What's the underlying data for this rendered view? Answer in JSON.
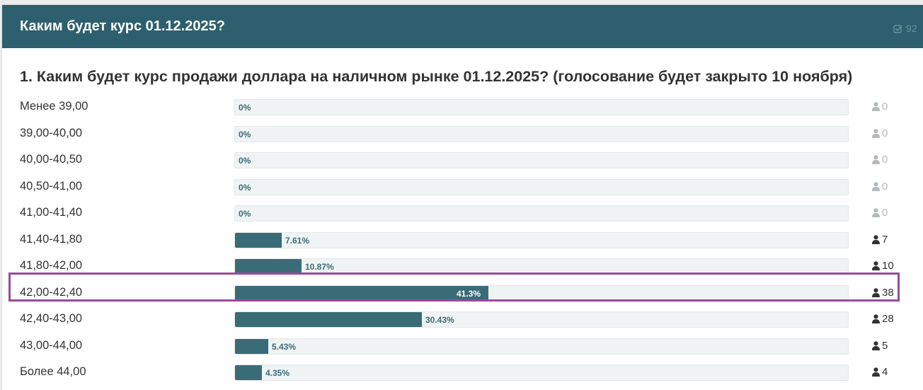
{
  "header": {
    "title": "Каким будет курс 01.12.2025?",
    "votes_badge": "92"
  },
  "question": "1. Каким будет курс продажи доллара на наличном рынке 01.12.2025? (голосование будет закрыто 10 ноября)",
  "options": [
    {
      "label": "Менее 39,00",
      "percent_text": "0%",
      "percent": 0,
      "votes": "0"
    },
    {
      "label": "39,00-40,00",
      "percent_text": "0%",
      "percent": 0,
      "votes": "0"
    },
    {
      "label": "40,00-40,50",
      "percent_text": "0%",
      "percent": 0,
      "votes": "0"
    },
    {
      "label": "40,50-41,00",
      "percent_text": "0%",
      "percent": 0,
      "votes": "0"
    },
    {
      "label": "41,00-41,40",
      "percent_text": "0%",
      "percent": 0,
      "votes": "0"
    },
    {
      "label": "41,40-41,80",
      "percent_text": "7.61%",
      "percent": 7.61,
      "votes": "7"
    },
    {
      "label": "41,80-42,00",
      "percent_text": "10.87%",
      "percent": 10.87,
      "votes": "10"
    },
    {
      "label": "42,00-42,40",
      "percent_text": "41.3%",
      "percent": 41.3,
      "votes": "38",
      "highlighted": true
    },
    {
      "label": "42,40-43,00",
      "percent_text": "30.43%",
      "percent": 30.43,
      "votes": "28"
    },
    {
      "label": "43,00-44,00",
      "percent_text": "5.43%",
      "percent": 5.43,
      "votes": "5"
    },
    {
      "label": "Более 44,00",
      "percent_text": "4.35%",
      "percent": 4.35,
      "votes": "4"
    }
  ],
  "colors": {
    "header_bg": "#2d5f6e",
    "bar_fill": "#3a6c78",
    "highlight_border": "#9a4a9e"
  },
  "icons": {
    "header_badge": "checkbox-icon",
    "vote": "user-icon"
  }
}
